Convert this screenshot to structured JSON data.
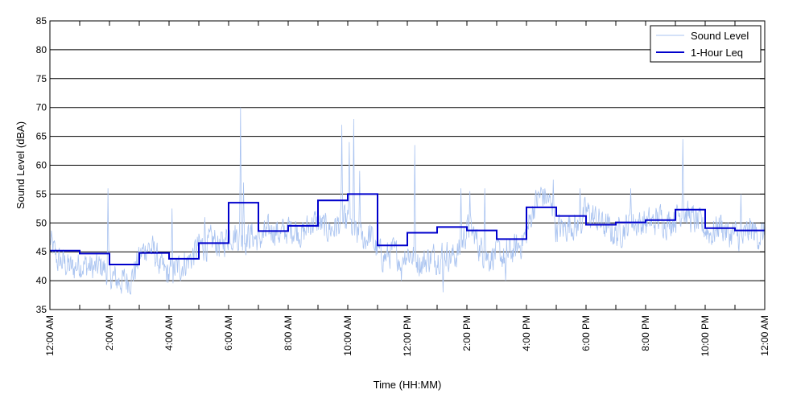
{
  "chart_data": {
    "type": "line",
    "title": "",
    "xlabel": "Time (HH:MM)",
    "ylabel": "Sound Level (dBA)",
    "ylim": [
      35,
      85
    ],
    "yticks": [
      35,
      40,
      45,
      50,
      55,
      60,
      65,
      70,
      75,
      80,
      85
    ],
    "xlim_hours": [
      0,
      24
    ],
    "xtick_labels": [
      "12:00 AM",
      "2:00 AM",
      "4:00 AM",
      "6:00 AM",
      "8:00 AM",
      "10:00 AM",
      "12:00 PM",
      "2:00 PM",
      "4:00 PM",
      "6:00 PM",
      "8:00 PM",
      "10:00 PM",
      "12:00 AM"
    ],
    "xtick_hours": [
      0,
      2,
      4,
      6,
      8,
      10,
      12,
      14,
      16,
      18,
      20,
      22,
      24
    ],
    "grid": true,
    "legend_position": "top-right",
    "series": [
      {
        "name": "Sound Level",
        "color": "#a9c3f0",
        "anchor_hours": [
          0,
          0.25,
          0.5,
          0.75,
          1,
          1.25,
          1.5,
          1.75,
          2,
          2.25,
          2.5,
          2.75,
          3,
          3.25,
          3.5,
          3.75,
          4,
          4.25,
          4.5,
          4.75,
          5,
          5.25,
          5.5,
          5.75,
          6,
          6.25,
          6.5,
          6.75,
          7,
          7.25,
          7.5,
          7.75,
          8,
          8.25,
          8.5,
          8.75,
          9,
          9.25,
          9.5,
          9.75,
          10,
          10.25,
          10.5,
          10.75,
          11,
          11.25,
          11.5,
          11.75,
          12,
          12.25,
          12.5,
          12.75,
          13,
          13.25,
          13.5,
          13.75,
          14,
          14.25,
          14.5,
          14.75,
          15,
          15.25,
          15.5,
          15.75,
          16,
          16.25,
          16.5,
          16.75,
          17,
          17.25,
          17.5,
          17.75,
          18,
          18.25,
          18.5,
          18.75,
          19,
          19.25,
          19.5,
          19.75,
          20,
          20.25,
          20.5,
          20.75,
          21,
          21.25,
          21.5,
          21.75,
          22,
          22.25,
          22.5,
          22.75,
          23,
          23.25,
          23.5,
          23.75,
          24
        ],
        "anchor_values": [
          47,
          43.5,
          43,
          42,
          43,
          42.5,
          42,
          42.5,
          41,
          40,
          40,
          40.5,
          44,
          46,
          45,
          42,
          41,
          42,
          43,
          44,
          46,
          46,
          47,
          46,
          48,
          48,
          47,
          48,
          47,
          48,
          49,
          48,
          49,
          49,
          48,
          50,
          50,
          49,
          49,
          50,
          50,
          48,
          47,
          48,
          45,
          44,
          45,
          44,
          45,
          44,
          43,
          44,
          44,
          45,
          44,
          45,
          49,
          48,
          45,
          44,
          45,
          44,
          45,
          46,
          48,
          53,
          55,
          54,
          49,
          49,
          50,
          49,
          52,
          51,
          50,
          49,
          48,
          49,
          50,
          50,
          50,
          50,
          51,
          50,
          51,
          52,
          51,
          50,
          49,
          48,
          50,
          48,
          48,
          47,
          49,
          48,
          48
        ],
        "spikes": [
          {
            "hour": 1.95,
            "value": 56
          },
          {
            "hour": 4.1,
            "value": 52.5
          },
          {
            "hour": 5.2,
            "value": 51
          },
          {
            "hour": 6.4,
            "value": 70
          },
          {
            "hour": 6.5,
            "value": 57
          },
          {
            "hour": 9.8,
            "value": 67
          },
          {
            "hour": 10.05,
            "value": 64
          },
          {
            "hour": 10.2,
            "value": 68
          },
          {
            "hour": 10.4,
            "value": 59
          },
          {
            "hour": 11.8,
            "value": 40
          },
          {
            "hour": 12.25,
            "value": 63.5
          },
          {
            "hour": 13.2,
            "value": 38
          },
          {
            "hour": 13.8,
            "value": 56
          },
          {
            "hour": 14.1,
            "value": 55.5
          },
          {
            "hour": 14.6,
            "value": 56
          },
          {
            "hour": 15.3,
            "value": 40
          },
          {
            "hour": 16.9,
            "value": 57.5
          },
          {
            "hour": 17.8,
            "value": 56
          },
          {
            "hour": 19.5,
            "value": 56
          },
          {
            "hour": 21.25,
            "value": 64.5
          },
          {
            "hour": 23.2,
            "value": 55
          }
        ]
      },
      {
        "name": "1-Hour Leq",
        "color": "#0000cc",
        "step_values": [
          45.2,
          44.7,
          42.8,
          44.8,
          43.8,
          46.5,
          53.5,
          48.6,
          49.5,
          53.9,
          55,
          46.1,
          48.3,
          49.3,
          48.7,
          47.2,
          52.7,
          51.2,
          49.7,
          50.1,
          50.5,
          52.3,
          49.1,
          48.7
        ]
      }
    ]
  }
}
